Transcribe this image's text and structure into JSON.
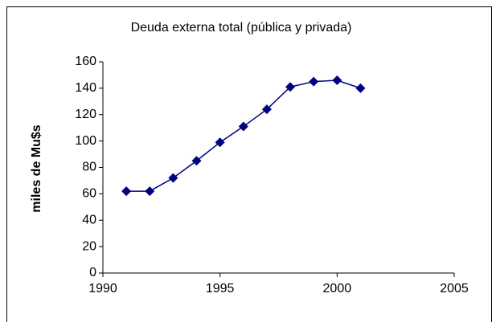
{
  "chart_data": {
    "type": "line",
    "title": "Deuda externa  total (pública y privada)",
    "y_label": "miles de Mu$s",
    "x": [
      1991,
      1992,
      1993,
      1994,
      1995,
      1996,
      1997,
      1998,
      1999,
      2000,
      2001
    ],
    "series": [
      {
        "color": "#000080",
        "values": [
          62,
          62,
          72,
          85,
          99,
          111,
          124,
          141,
          145,
          146,
          140
        ]
      }
    ],
    "xlim": [
      1990,
      2005
    ],
    "xticks": [
      1990,
      1995,
      2000,
      2005
    ],
    "ylim": [
      0,
      160
    ],
    "yticks": [
      0,
      20,
      40,
      60,
      80,
      100,
      120,
      140,
      160
    ],
    "grid": false,
    "marker": "diamond"
  }
}
